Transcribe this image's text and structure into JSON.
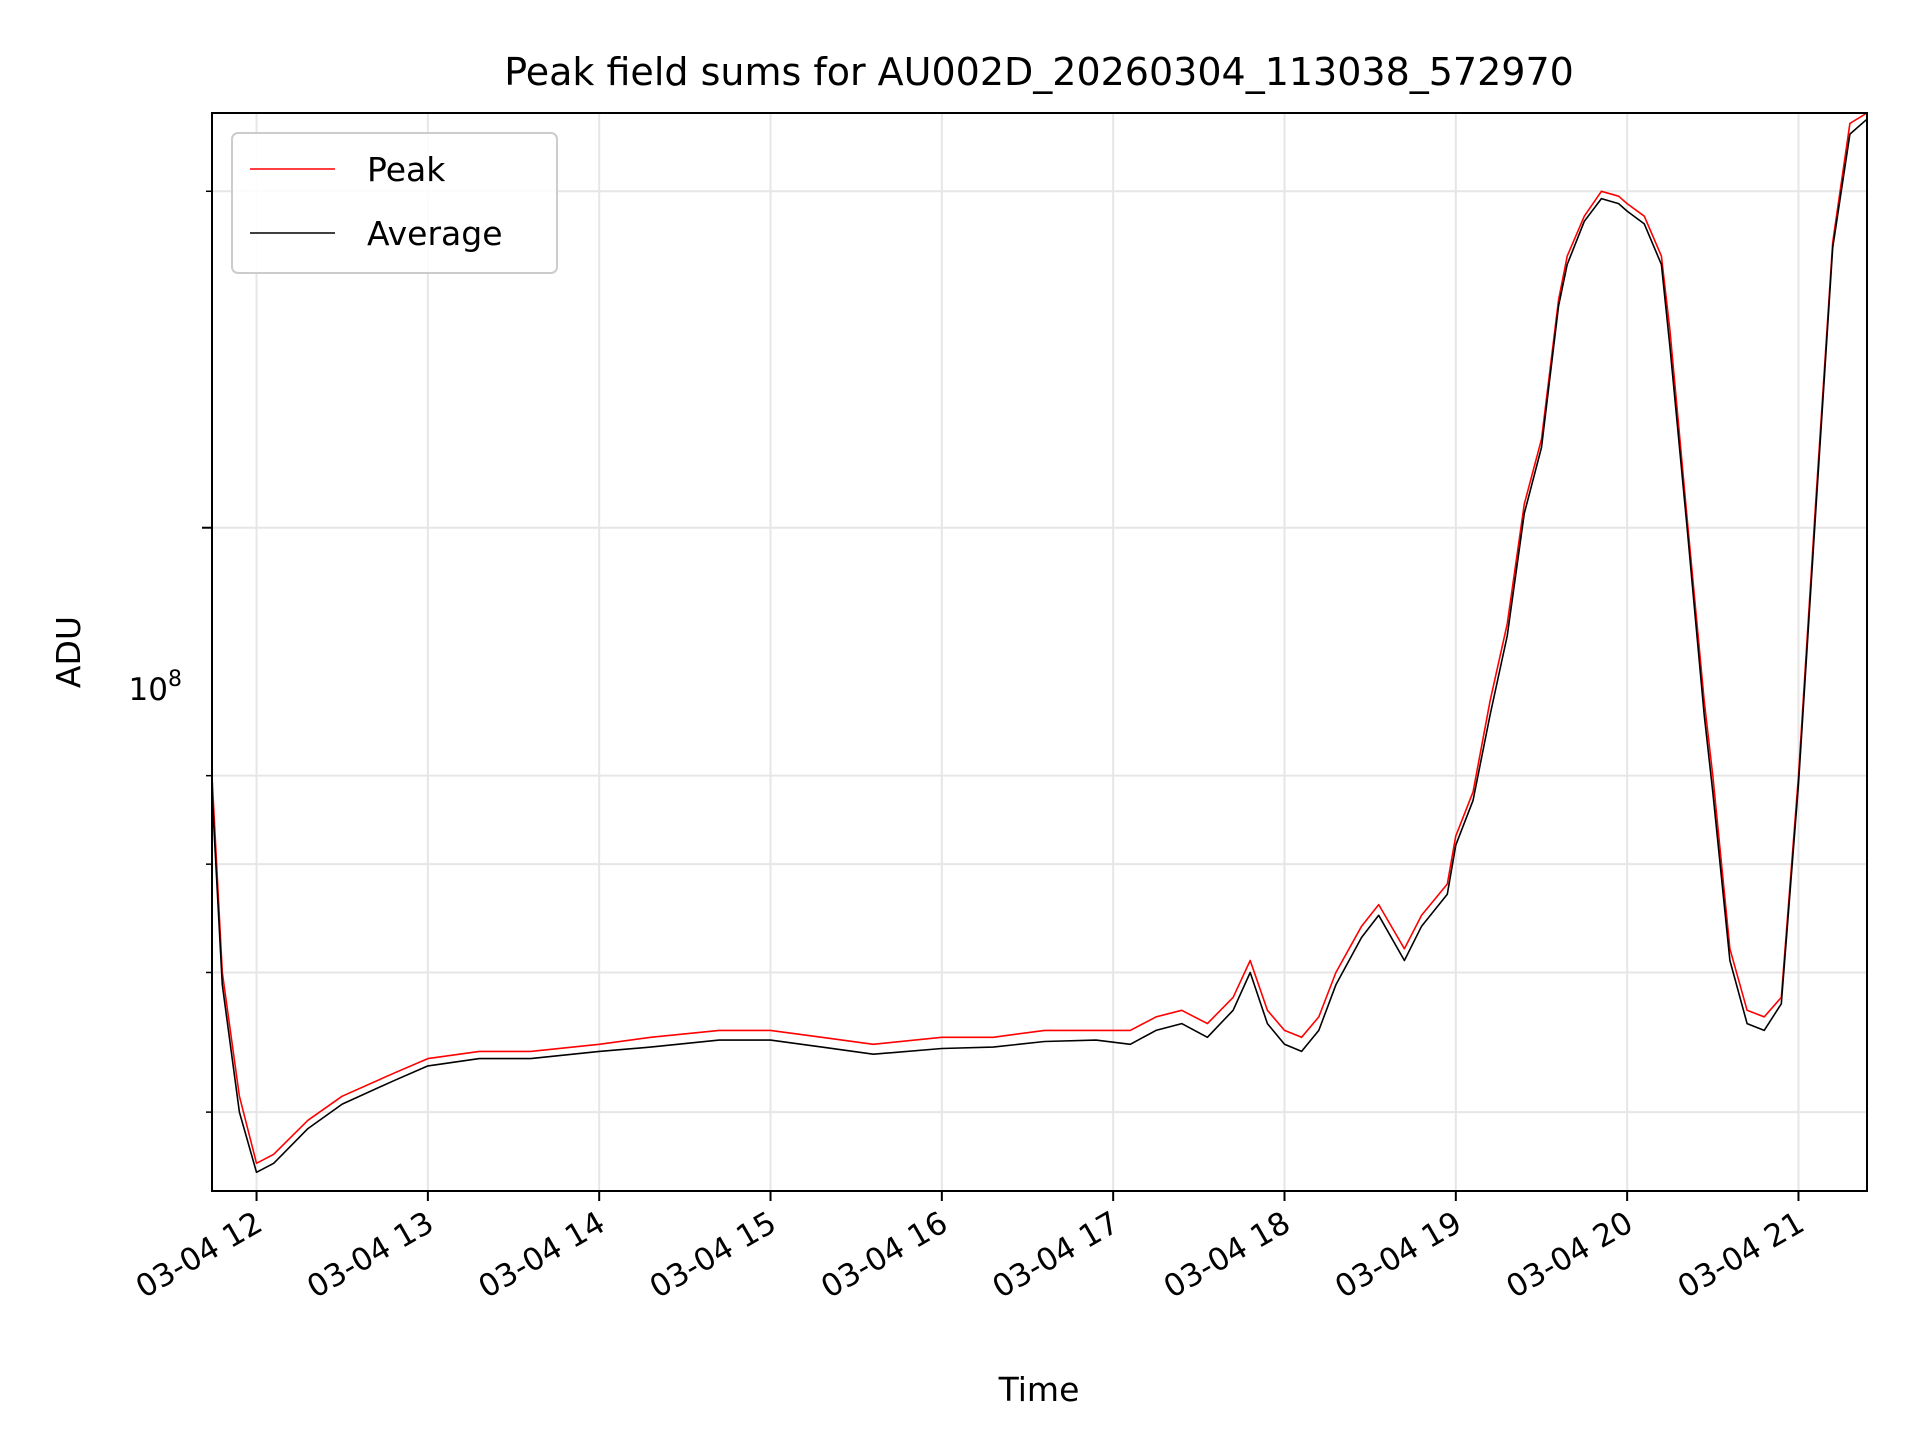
{
  "chart_data": {
    "type": "line",
    "title": "Peak field sums for AU002D_20260304_113038_572970",
    "xlabel": "Time",
    "ylabel": "ADU",
    "yscale": "log",
    "grid": true,
    "legend_position": "top-left",
    "xlim_hours": [
      11.74,
      21.4
    ],
    "ylim": [
      25500000,
      235000000
    ],
    "x_ticks": [
      {
        "hour": 12,
        "label": "03-04 12"
      },
      {
        "hour": 13,
        "label": "03-04 13"
      },
      {
        "hour": 14,
        "label": "03-04 14"
      },
      {
        "hour": 15,
        "label": "03-04 15"
      },
      {
        "hour": 16,
        "label": "03-04 16"
      },
      {
        "hour": 17,
        "label": "03-04 17"
      },
      {
        "hour": 18,
        "label": "03-04 18"
      },
      {
        "hour": 19,
        "label": "03-04 19"
      },
      {
        "hour": 20,
        "label": "03-04 20"
      },
      {
        "hour": 21,
        "label": "03-04 21"
      }
    ],
    "y_major_tick": {
      "value": 100000000,
      "label_base": "10",
      "label_exp": "8"
    },
    "y_minor_ticks": [
      30000000,
      40000000,
      50000000,
      60000000,
      200000000
    ],
    "series": [
      {
        "name": "Peak",
        "color": "#ff0000",
        "x_hours": [
          11.74,
          11.8,
          11.9,
          12.0,
          12.1,
          12.3,
          12.5,
          12.8,
          13.0,
          13.3,
          13.6,
          14.0,
          14.3,
          14.7,
          15.0,
          15.3,
          15.6,
          16.0,
          16.3,
          16.6,
          16.9,
          17.1,
          17.25,
          17.4,
          17.55,
          17.7,
          17.8,
          17.9,
          18.0,
          18.1,
          18.2,
          18.3,
          18.45,
          18.55,
          18.7,
          18.8,
          18.95,
          19.0,
          19.1,
          19.2,
          19.3,
          19.4,
          19.5,
          19.6,
          19.65,
          19.75,
          19.85,
          19.95,
          20.0,
          20.1,
          20.2,
          20.25,
          20.35,
          20.45,
          20.5,
          20.6,
          20.7,
          20.8,
          20.9,
          21.0,
          21.1,
          21.2,
          21.3,
          21.4
        ],
        "values_millions": [
          60,
          40,
          31,
          27,
          27.5,
          29.5,
          31,
          32.5,
          33.5,
          34,
          34,
          34.5,
          35,
          35.5,
          35.5,
          35,
          34.5,
          35,
          35,
          35.5,
          35.5,
          35.5,
          36.5,
          37,
          36,
          38,
          41,
          37,
          35.5,
          35,
          36.5,
          40,
          44,
          46,
          42,
          45,
          48,
          53,
          58,
          70,
          82,
          105,
          120,
          160,
          175,
          190,
          200,
          198,
          195,
          190,
          175,
          150,
          102,
          70,
          60,
          42,
          37,
          36.5,
          38,
          60,
          105,
          180,
          230,
          235
        ]
      },
      {
        "name": "Average",
        "color": "#000000",
        "x_hours": [
          11.74,
          11.8,
          11.9,
          12.0,
          12.1,
          12.3,
          12.5,
          12.8,
          13.0,
          13.3,
          13.6,
          14.0,
          14.3,
          14.7,
          15.0,
          15.3,
          15.6,
          16.0,
          16.3,
          16.6,
          16.9,
          17.1,
          17.25,
          17.4,
          17.55,
          17.7,
          17.8,
          17.9,
          18.0,
          18.1,
          18.2,
          18.3,
          18.45,
          18.55,
          18.7,
          18.8,
          18.95,
          19.0,
          19.1,
          19.2,
          19.3,
          19.4,
          19.5,
          19.6,
          19.65,
          19.75,
          19.85,
          19.95,
          20.0,
          20.1,
          20.2,
          20.25,
          20.35,
          20.45,
          20.5,
          20.6,
          20.7,
          20.8,
          20.9,
          21.0,
          21.1,
          21.2,
          21.3,
          21.4
        ],
        "values_millions": [
          58,
          39,
          30,
          26.5,
          27,
          29,
          30.5,
          32,
          33,
          33.5,
          33.5,
          34,
          34.3,
          34.8,
          34.8,
          34.3,
          33.8,
          34.2,
          34.3,
          34.7,
          34.8,
          34.5,
          35.5,
          36,
          35,
          37,
          40,
          36,
          34.5,
          34,
          35.5,
          39,
          43,
          45,
          41,
          44,
          47,
          52,
          57,
          68,
          80,
          103,
          118,
          158,
          172,
          188,
          197,
          195,
          192,
          187,
          172,
          145,
          100,
          68,
          58,
          41,
          36,
          35.5,
          37.5,
          59,
          103,
          178,
          225,
          232
        ]
      }
    ]
  }
}
